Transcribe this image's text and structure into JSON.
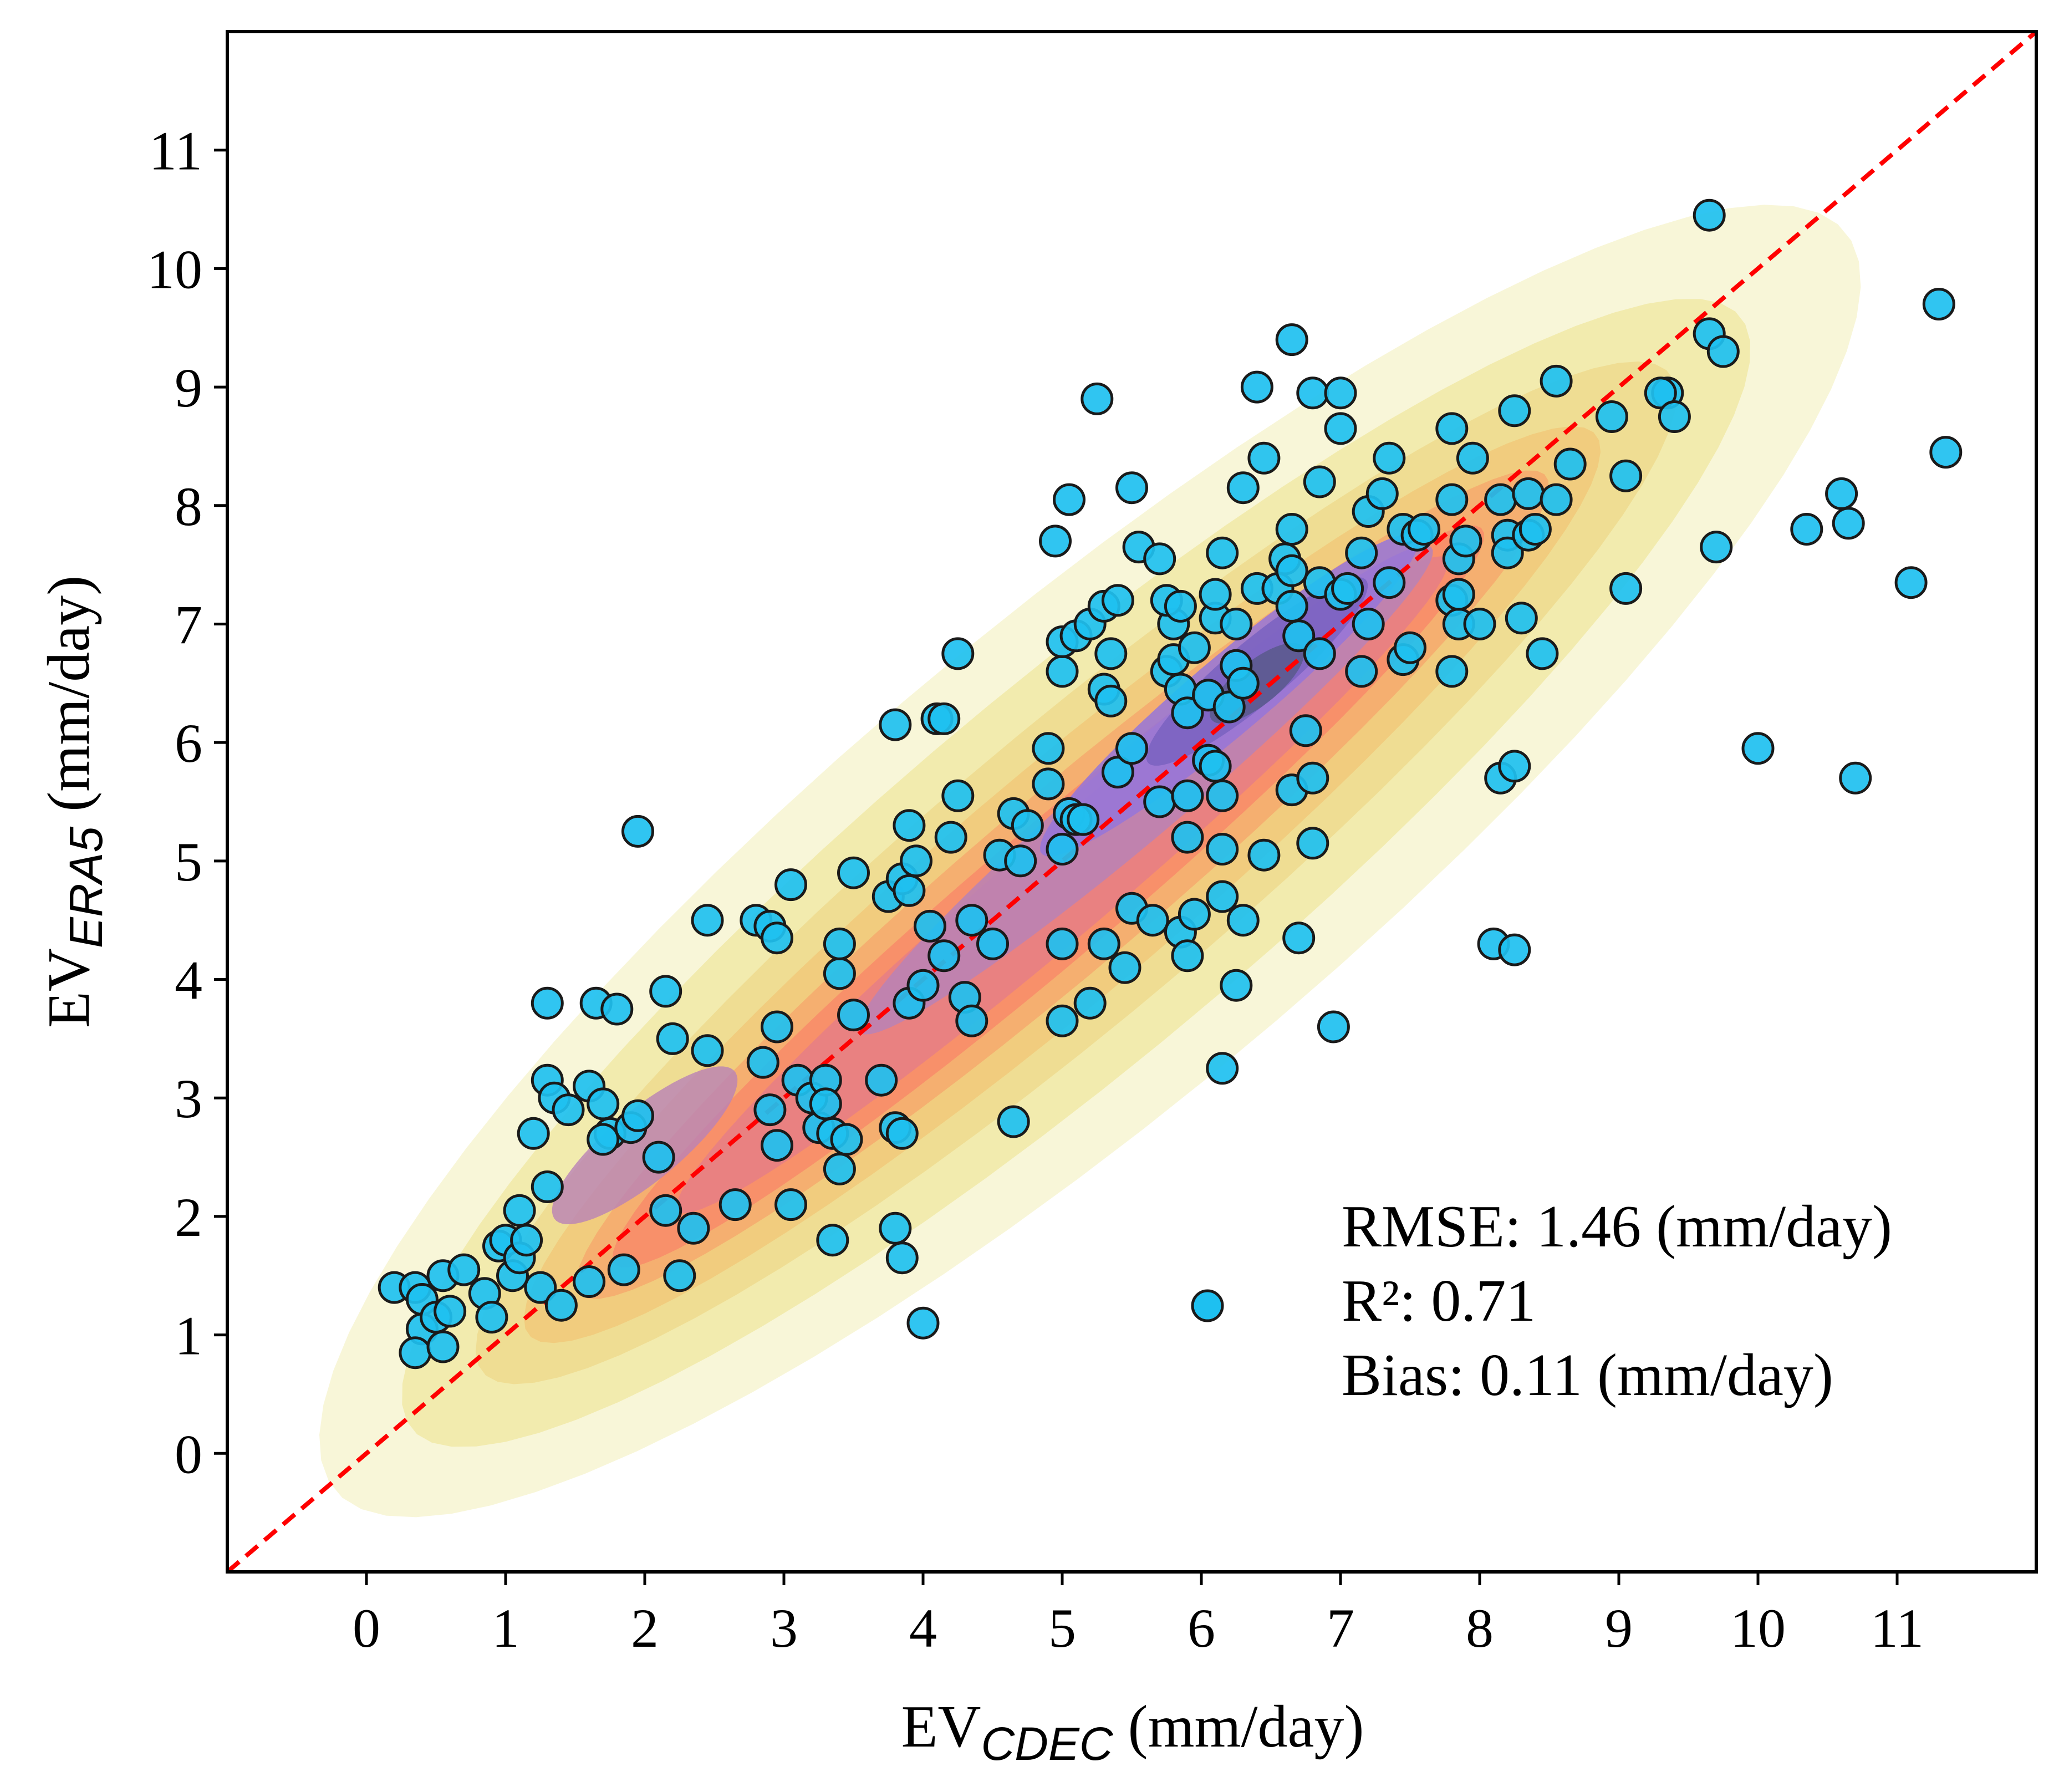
{
  "chart_data": {
    "type": "scatter",
    "xlabel": {
      "prefix": "EV",
      "subscript": "CDEC",
      "suffix": " (mm/day)"
    },
    "ylabel": {
      "prefix": "EV",
      "subscript": "ERA5",
      "suffix": " (mm/day)"
    },
    "xlim": [
      -1,
      12
    ],
    "ylim": [
      -1,
      12
    ],
    "x_ticks": [
      0,
      1,
      2,
      3,
      4,
      5,
      6,
      7,
      8,
      9,
      10,
      11
    ],
    "y_ticks": [
      0,
      1,
      2,
      3,
      4,
      5,
      6,
      7,
      8,
      9,
      10,
      11
    ],
    "grid": false,
    "one_to_one_line": {
      "style": "dashed",
      "color": "#ff0000"
    },
    "marker": {
      "fill": "#1ec0f0",
      "edge": "#1a1a1a"
    },
    "density_colors": [
      "#f6f4cf",
      "#f1e9a6",
      "#efdb8e",
      "#f1c97a",
      "#f6aa6e",
      "#f88b69",
      "#e77f85",
      "#b982b6",
      "#9676d8",
      "#7a62c0",
      "#5a5a8c"
    ],
    "annotation": {
      "lines": [
        "RMSE: 1.46 (mm/day)",
        "R²: 0.71",
        "Bias: 0.11 (mm/day)"
      ]
    },
    "points": [
      [
        0.2,
        1.4
      ],
      [
        0.35,
        1.4
      ],
      [
        0.4,
        1.3
      ],
      [
        0.4,
        1.05
      ],
      [
        0.35,
        0.85
      ],
      [
        0.55,
        0.9
      ],
      [
        0.5,
        1.15
      ],
      [
        0.6,
        1.2
      ],
      [
        0.55,
        1.5
      ],
      [
        0.7,
        1.55
      ],
      [
        0.85,
        1.35
      ],
      [
        0.9,
        1.15
      ],
      [
        0.95,
        1.75
      ],
      [
        1.0,
        1.8
      ],
      [
        1.05,
        1.5
      ],
      [
        1.1,
        1.65
      ],
      [
        1.15,
        1.8
      ],
      [
        1.1,
        2.05
      ],
      [
        1.25,
        1.4
      ],
      [
        1.4,
        1.25
      ],
      [
        1.6,
        1.45
      ],
      [
        1.85,
        1.55
      ],
      [
        2.25,
        1.5
      ],
      [
        1.3,
        2.25
      ],
      [
        1.2,
        2.7
      ],
      [
        1.3,
        3.15
      ],
      [
        1.35,
        3.0
      ],
      [
        1.45,
        2.9
      ],
      [
        1.6,
        3.1
      ],
      [
        1.7,
        2.95
      ],
      [
        1.75,
        2.7
      ],
      [
        1.7,
        2.65
      ],
      [
        1.9,
        2.75
      ],
      [
        1.95,
        2.85
      ],
      [
        2.1,
        2.5
      ],
      [
        2.15,
        2.05
      ],
      [
        2.35,
        1.9
      ],
      [
        2.65,
        2.1
      ],
      [
        3.05,
        2.1
      ],
      [
        3.35,
        1.8
      ],
      [
        3.8,
        1.9
      ],
      [
        3.85,
        1.65
      ],
      [
        4.0,
        1.1
      ],
      [
        1.3,
        3.8
      ],
      [
        1.65,
        3.8
      ],
      [
        1.8,
        3.75
      ],
      [
        2.15,
        3.9
      ],
      [
        2.2,
        3.5
      ],
      [
        2.45,
        3.4
      ],
      [
        2.85,
        3.3
      ],
      [
        2.9,
        2.9
      ],
      [
        2.95,
        2.6
      ],
      [
        2.95,
        3.6
      ],
      [
        3.1,
        3.15
      ],
      [
        3.2,
        3.0
      ],
      [
        3.3,
        3.15
      ],
      [
        3.25,
        2.75
      ],
      [
        3.3,
        2.95
      ],
      [
        3.35,
        2.7
      ],
      [
        3.4,
        2.4
      ],
      [
        3.45,
        2.65
      ],
      [
        3.5,
        3.7
      ],
      [
        3.4,
        4.05
      ],
      [
        3.4,
        4.3
      ],
      [
        3.7,
        3.15
      ],
      [
        3.8,
        2.75
      ],
      [
        3.85,
        2.7
      ],
      [
        1.95,
        5.25
      ],
      [
        2.45,
        4.5
      ],
      [
        2.8,
        4.5
      ],
      [
        2.9,
        4.45
      ],
      [
        2.95,
        4.35
      ],
      [
        3.05,
        4.8
      ],
      [
        3.5,
        4.9
      ],
      [
        3.75,
        4.7
      ],
      [
        3.85,
        4.85
      ],
      [
        3.9,
        4.75
      ],
      [
        3.95,
        5.0
      ],
      [
        3.9,
        5.3
      ],
      [
        3.8,
        6.15
      ],
      [
        4.1,
        6.2
      ],
      [
        4.15,
        6.2
      ],
      [
        4.2,
        5.2
      ],
      [
        4.25,
        5.55
      ],
      [
        4.25,
        6.75
      ],
      [
        3.9,
        3.8
      ],
      [
        4.0,
        3.95
      ],
      [
        4.05,
        4.45
      ],
      [
        4.15,
        4.2
      ],
      [
        4.3,
        3.85
      ],
      [
        4.35,
        3.65
      ],
      [
        4.35,
        4.5
      ],
      [
        4.5,
        4.3
      ],
      [
        4.55,
        5.05
      ],
      [
        4.65,
        5.4
      ],
      [
        4.7,
        5.0
      ],
      [
        4.75,
        5.3
      ],
      [
        4.65,
        2.8
      ],
      [
        5.0,
        3.65
      ],
      [
        5.0,
        4.3
      ],
      [
        5.2,
        3.8
      ],
      [
        5.3,
        4.3
      ],
      [
        5.45,
        4.1
      ],
      [
        5.5,
        4.6
      ],
      [
        5.65,
        4.5
      ],
      [
        5.0,
        5.1
      ],
      [
        5.05,
        5.4
      ],
      [
        5.1,
        5.35
      ],
      [
        5.15,
        5.35
      ],
      [
        4.9,
        5.65
      ],
      [
        4.9,
        5.95
      ],
      [
        5.0,
        6.6
      ],
      [
        5.0,
        6.85
      ],
      [
        5.1,
        6.9
      ],
      [
        5.2,
        7.0
      ],
      [
        5.3,
        6.45
      ],
      [
        5.35,
        6.35
      ],
      [
        5.35,
        6.75
      ],
      [
        5.3,
        7.15
      ],
      [
        5.4,
        7.2
      ],
      [
        5.4,
        5.75
      ],
      [
        5.5,
        5.95
      ],
      [
        5.55,
        7.65
      ],
      [
        5.5,
        8.15
      ],
      [
        4.95,
        7.7
      ],
      [
        5.05,
        8.05
      ],
      [
        5.25,
        8.9
      ],
      [
        5.7,
        5.5
      ],
      [
        5.75,
        6.6
      ],
      [
        5.8,
        6.7
      ],
      [
        5.8,
        7.0
      ],
      [
        5.75,
        7.2
      ],
      [
        5.7,
        7.55
      ],
      [
        5.85,
        6.45
      ],
      [
        5.85,
        7.15
      ],
      [
        5.9,
        6.25
      ],
      [
        5.9,
        5.55
      ],
      [
        5.9,
        5.2
      ],
      [
        5.85,
        4.4
      ],
      [
        5.9,
        4.2
      ],
      [
        5.95,
        4.55
      ],
      [
        5.95,
        6.8
      ],
      [
        6.05,
        6.4
      ],
      [
        6.1,
        7.05
      ],
      [
        6.1,
        7.25
      ],
      [
        6.15,
        7.6
      ],
      [
        6.05,
        5.85
      ],
      [
        6.1,
        5.8
      ],
      [
        6.15,
        5.55
      ],
      [
        6.15,
        5.1
      ],
      [
        6.15,
        4.7
      ],
      [
        6.15,
        3.25
      ],
      [
        6.25,
        3.95
      ],
      [
        6.3,
        4.5
      ],
      [
        6.45,
        5.05
      ],
      [
        6.2,
        6.3
      ],
      [
        6.25,
        6.65
      ],
      [
        6.25,
        7.0
      ],
      [
        6.3,
        6.5
      ],
      [
        6.4,
        7.3
      ],
      [
        6.55,
        7.3
      ],
      [
        6.45,
        8.4
      ],
      [
        6.3,
        8.15
      ],
      [
        6.4,
        9.0
      ],
      [
        6.6,
        7.55
      ],
      [
        6.65,
        7.8
      ],
      [
        6.65,
        7.45
      ],
      [
        6.65,
        7.15
      ],
      [
        6.7,
        6.9
      ],
      [
        6.75,
        6.1
      ],
      [
        6.65,
        5.6
      ],
      [
        6.8,
        5.7
      ],
      [
        6.8,
        5.15
      ],
      [
        6.7,
        4.35
      ],
      [
        6.95,
        3.6
      ],
      [
        6.65,
        9.4
      ],
      [
        6.8,
        8.95
      ],
      [
        6.85,
        8.2
      ],
      [
        7.0,
        8.95
      ],
      [
        7.0,
        8.65
      ],
      [
        6.85,
        7.35
      ],
      [
        6.85,
        6.75
      ],
      [
        7.0,
        7.25
      ],
      [
        7.05,
        7.3
      ],
      [
        7.15,
        7.6
      ],
      [
        7.2,
        7.95
      ],
      [
        7.2,
        7.0
      ],
      [
        7.15,
        6.6
      ],
      [
        7.35,
        7.35
      ],
      [
        7.3,
        8.1
      ],
      [
        7.35,
        8.4
      ],
      [
        7.45,
        7.8
      ],
      [
        7.45,
        6.7
      ],
      [
        7.5,
        6.8
      ],
      [
        7.55,
        7.75
      ],
      [
        7.6,
        7.8
      ],
      [
        7.8,
        8.05
      ],
      [
        7.8,
        8.65
      ],
      [
        7.95,
        8.4
      ],
      [
        7.8,
        7.2
      ],
      [
        7.85,
        7.0
      ],
      [
        7.85,
        7.25
      ],
      [
        7.85,
        7.55
      ],
      [
        7.9,
        7.7
      ],
      [
        7.8,
        6.6
      ],
      [
        8.0,
        7.0
      ],
      [
        8.2,
        7.75
      ],
      [
        8.2,
        7.6
      ],
      [
        8.15,
        8.05
      ],
      [
        8.25,
        8.8
      ],
      [
        8.35,
        7.75
      ],
      [
        8.3,
        7.05
      ],
      [
        8.35,
        8.1
      ],
      [
        8.4,
        7.8
      ],
      [
        8.45,
        6.75
      ],
      [
        8.55,
        8.05
      ],
      [
        8.55,
        9.05
      ],
      [
        8.65,
        8.35
      ],
      [
        8.15,
        5.7
      ],
      [
        8.25,
        5.8
      ],
      [
        8.1,
        4.3
      ],
      [
        8.25,
        4.25
      ],
      [
        8.95,
        8.75
      ],
      [
        9.05,
        8.25
      ],
      [
        9.05,
        7.3
      ],
      [
        9.35,
        8.95
      ],
      [
        9.3,
        8.95
      ],
      [
        9.4,
        8.75
      ],
      [
        9.65,
        10.45
      ],
      [
        9.65,
        9.45
      ],
      [
        9.75,
        9.3
      ],
      [
        9.7,
        7.65
      ],
      [
        10.0,
        5.95
      ],
      [
        10.35,
        7.8
      ],
      [
        10.6,
        8.1
      ],
      [
        10.65,
        7.85
      ],
      [
        10.7,
        5.7
      ],
      [
        11.1,
        7.35
      ],
      [
        11.3,
        9.7
      ],
      [
        11.35,
        8.45
      ]
    ]
  }
}
